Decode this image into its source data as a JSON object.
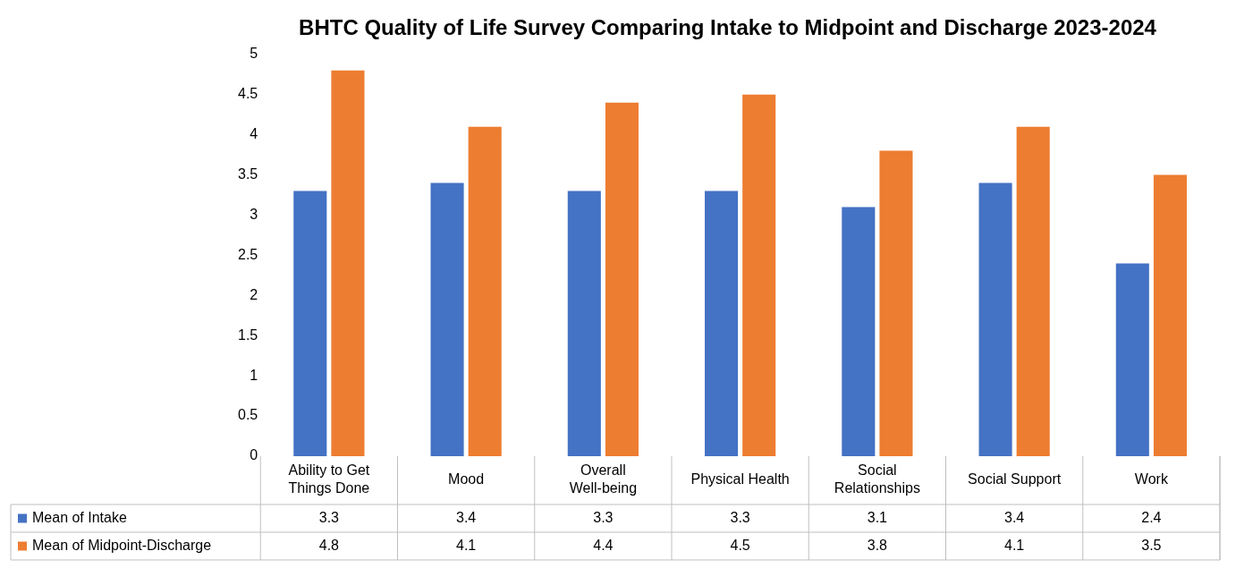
{
  "chart_data": {
    "type": "bar",
    "title": "BHTC Quality of Life Survey Comparing Intake to Midpoint and Discharge 2023-2024",
    "categories": [
      "Ability to Get Things Done",
      "Mood",
      "Overall Well-being",
      "Physical Health",
      "Social Relationships",
      "Social Support",
      "Work"
    ],
    "series": [
      {
        "name": "Mean of Intake",
        "color": "#4472c4",
        "values": [
          3.3,
          3.4,
          3.3,
          3.3,
          3.1,
          3.4,
          2.4
        ]
      },
      {
        "name": "Mean of Midpoint-Discharge",
        "color": "#ed7d31",
        "values": [
          4.8,
          4.1,
          4.4,
          4.5,
          3.8,
          4.1,
          3.5
        ]
      }
    ],
    "ylim": [
      0,
      5
    ],
    "yticks": [
      0,
      0.5,
      1,
      1.5,
      2,
      2.5,
      3,
      3.5,
      4,
      4.5,
      5
    ],
    "grid": false,
    "legend": "bottom",
    "data_labels": true
  }
}
